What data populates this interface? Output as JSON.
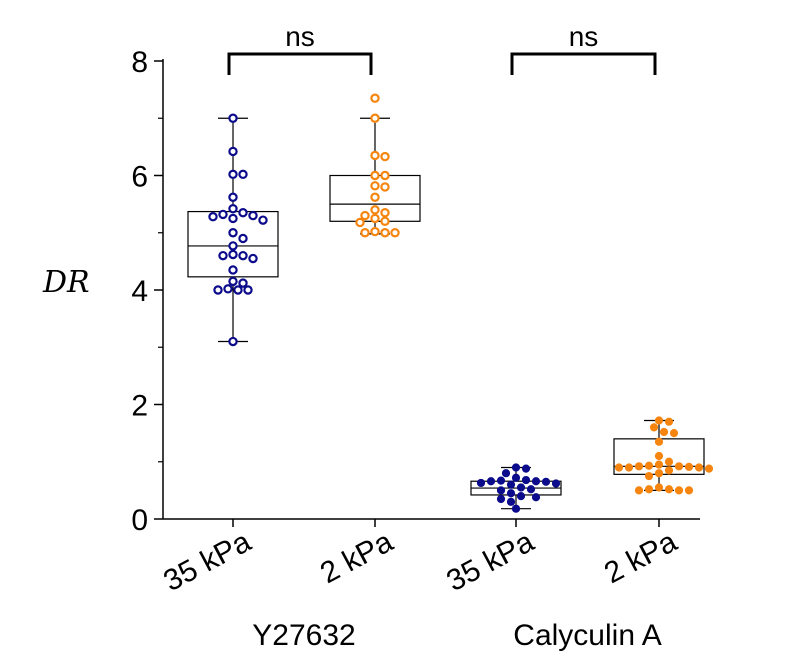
{
  "chart_data": {
    "type": "box",
    "ylabel": "DR",
    "ylim": [
      0,
      8
    ],
    "yticks": [
      0,
      2,
      4,
      6,
      8
    ],
    "y_minor_step": 1,
    "grid": false,
    "legend": "none",
    "categories": [
      "35 kPa",
      "2 kPa",
      "35 kPa",
      "2 kPa"
    ],
    "groups": [
      {
        "label": "Y27632",
        "categories": [
          0,
          1
        ]
      },
      {
        "label": "Calyculin A",
        "categories": [
          2,
          3
        ]
      }
    ],
    "significance": [
      {
        "from": 0,
        "to": 1,
        "label": "ns"
      },
      {
        "from": 2,
        "to": 3,
        "label": "ns"
      }
    ],
    "series": [
      {
        "category": "35 kPa",
        "group": "Y27632",
        "color": "#0b0b8c",
        "marker": "open-circle",
        "box": {
          "whisker_low": 3.1,
          "q1": 4.23,
          "median": 4.77,
          "q3": 5.37,
          "whisker_high": 7.0
        },
        "points": [
          7.0,
          6.42,
          6.02,
          6.02,
          5.62,
          5.42,
          5.35,
          5.32,
          5.3,
          5.28,
          5.25,
          5.22,
          5.0,
          4.9,
          4.77,
          4.62,
          4.6,
          4.6,
          4.55,
          4.35,
          4.15,
          4.12,
          4.02,
          4.0,
          4.0,
          4.0,
          3.1
        ]
      },
      {
        "category": "2 kPa",
        "group": "Y27632",
        "color": "#f5850f",
        "marker": "open-circle",
        "box": {
          "whisker_low": 4.98,
          "q1": 5.2,
          "median": 5.5,
          "q3": 6.0,
          "whisker_high": 7.0
        },
        "points": [
          7.35,
          7.0,
          6.35,
          6.33,
          6.0,
          6.0,
          5.82,
          5.8,
          5.62,
          5.4,
          5.35,
          5.3,
          5.25,
          5.2,
          5.18,
          5.02,
          5.0,
          5.0,
          5.0
        ]
      },
      {
        "category": "35 kPa",
        "group": "Calyculin A",
        "color": "#0b0b8c",
        "marker": "filled-circle",
        "box": {
          "whisker_low": 0.18,
          "q1": 0.42,
          "median": 0.54,
          "q3": 0.66,
          "whisker_high": 0.9
        },
        "points": [
          0.9,
          0.88,
          0.8,
          0.72,
          0.68,
          0.67,
          0.66,
          0.66,
          0.65,
          0.63,
          0.62,
          0.6,
          0.55,
          0.52,
          0.5,
          0.45,
          0.4,
          0.38,
          0.35,
          0.3,
          0.18
        ]
      },
      {
        "category": "2 kPa",
        "group": "Calyculin A",
        "color": "#f5850f",
        "marker": "filled-circle",
        "box": {
          "whisker_low": 0.5,
          "q1": 0.78,
          "median": 0.92,
          "q3": 1.4,
          "whisker_high": 1.72
        },
        "points": [
          1.72,
          1.7,
          1.6,
          1.52,
          1.5,
          1.35,
          1.1,
          1.0,
          0.95,
          0.93,
          0.92,
          0.92,
          0.91,
          0.9,
          0.9,
          0.9,
          0.88,
          0.85,
          0.8,
          0.75,
          0.55,
          0.52,
          0.52,
          0.5,
          0.5,
          0.5
        ]
      }
    ]
  }
}
